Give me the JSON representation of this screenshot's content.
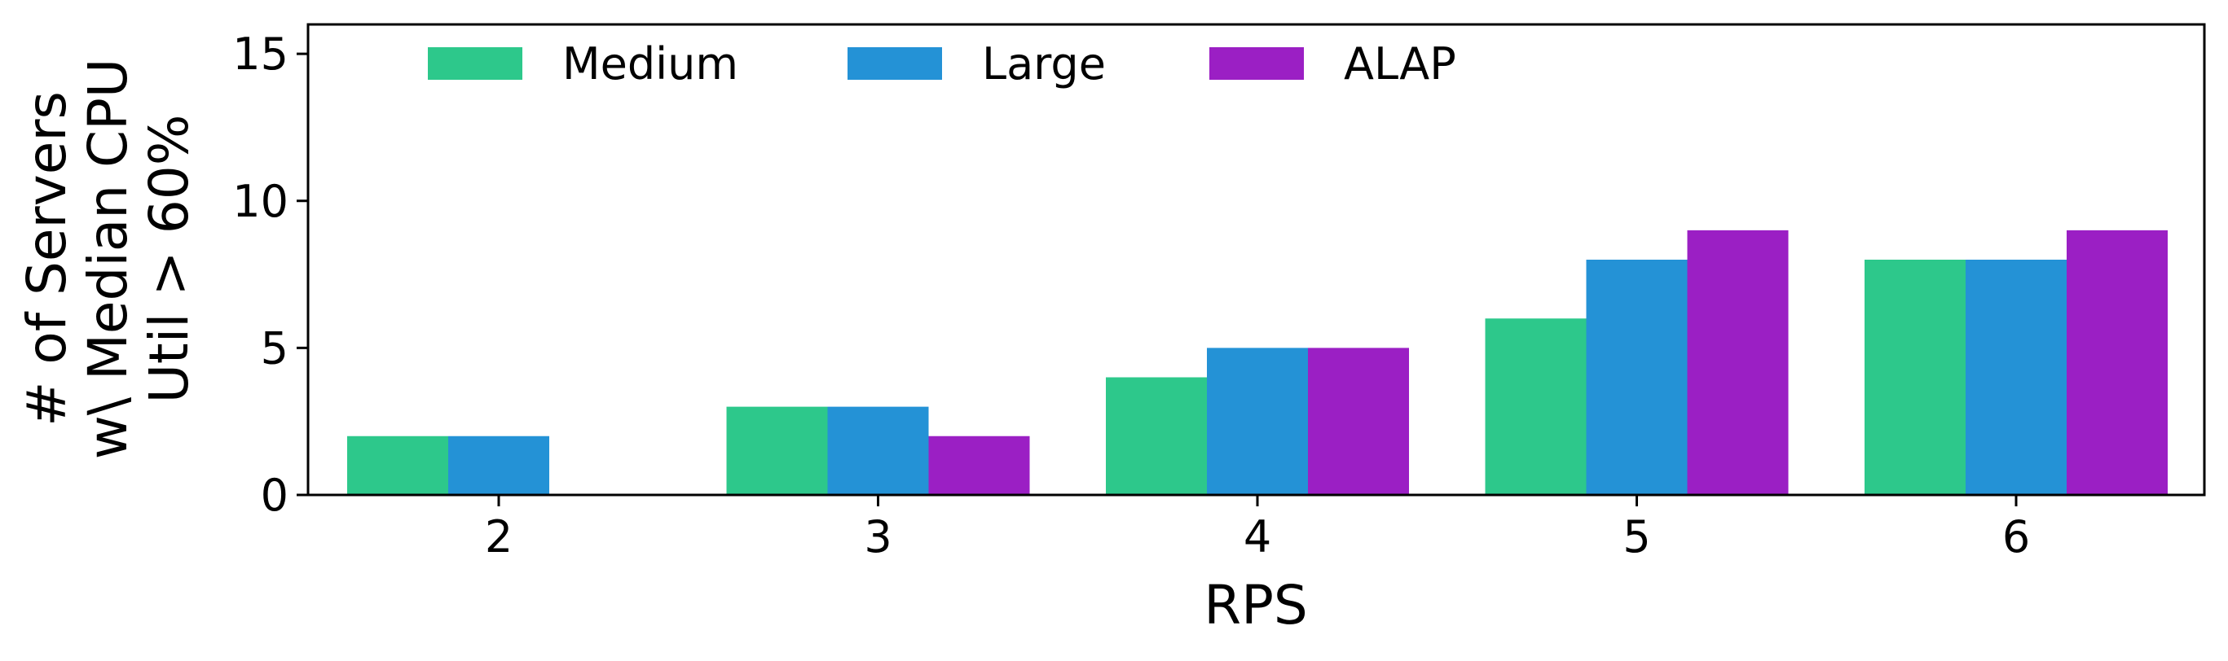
{
  "chart_data": {
    "type": "bar",
    "categories": [
      "2",
      "3",
      "4",
      "5",
      "6"
    ],
    "series": [
      {
        "name": "Medium",
        "color": "#2dc88b",
        "values": [
          2,
          3,
          4,
          6,
          8
        ]
      },
      {
        "name": "Large",
        "color": "#2492d6",
        "values": [
          2,
          3,
          5,
          8,
          8
        ]
      },
      {
        "name": "ALAP",
        "color": "#9b1fc4",
        "values": [
          0,
          2,
          5,
          9,
          9
        ]
      }
    ],
    "xlabel": "RPS",
    "ylabel_lines": [
      "# of Servers",
      "w\\ Median CPU",
      "Util > 60%"
    ],
    "ylim": [
      0,
      16
    ],
    "yticks": [
      0,
      5,
      10,
      15
    ],
    "grid": false,
    "legend_position": "top-left"
  }
}
